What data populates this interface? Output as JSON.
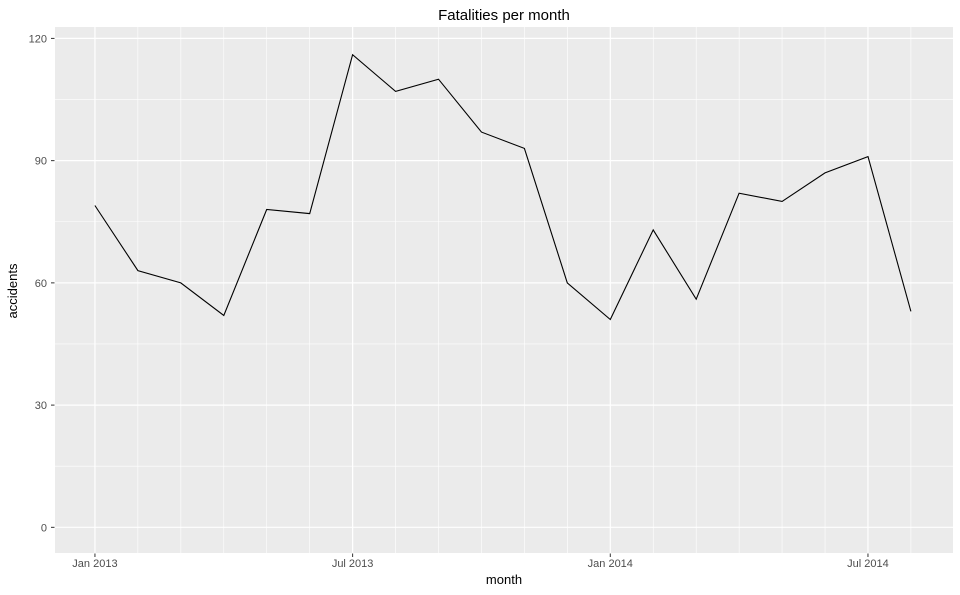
{
  "chart_data": {
    "type": "line",
    "title": "Fatalities per month",
    "xlabel": "month",
    "ylabel": "accidents",
    "x": [
      "Jan 2013",
      "Feb 2013",
      "Mar 2013",
      "Apr 2013",
      "May 2013",
      "Jun 2013",
      "Jul 2013",
      "Aug 2013",
      "Sep 2013",
      "Oct 2013",
      "Nov 2013",
      "Dec 2013",
      "Jan 2014",
      "Feb 2014",
      "Mar 2014",
      "Apr 2014",
      "May 2014",
      "Jun 2014",
      "Jul 2014",
      "Aug 2014"
    ],
    "values": [
      79,
      63,
      60,
      52,
      78,
      77,
      116,
      107,
      110,
      97,
      93,
      60,
      51,
      73,
      56,
      82,
      80,
      87,
      91,
      53
    ],
    "x_tick_labels": [
      "Jan 2013",
      "Jul 2013",
      "Jan 2014",
      "Jul 2014"
    ],
    "x_tick_indices": [
      0,
      6,
      12,
      18
    ],
    "y_major_ticks": [
      0,
      30,
      60,
      90,
      120
    ],
    "y_minor_ticks": [
      15,
      45,
      75,
      105
    ],
    "xlim_index": [
      -0.93,
      19.98
    ],
    "ylim": [
      -6.3,
      122.8
    ],
    "grid": "major-and-minor-on",
    "legend": "none",
    "line_color": "#000000",
    "panel_background": "#EBEBEB",
    "grid_color": "#FFFFFF",
    "tick_label_color": "#4D4D4D",
    "tick_mark_color": "#333333"
  }
}
